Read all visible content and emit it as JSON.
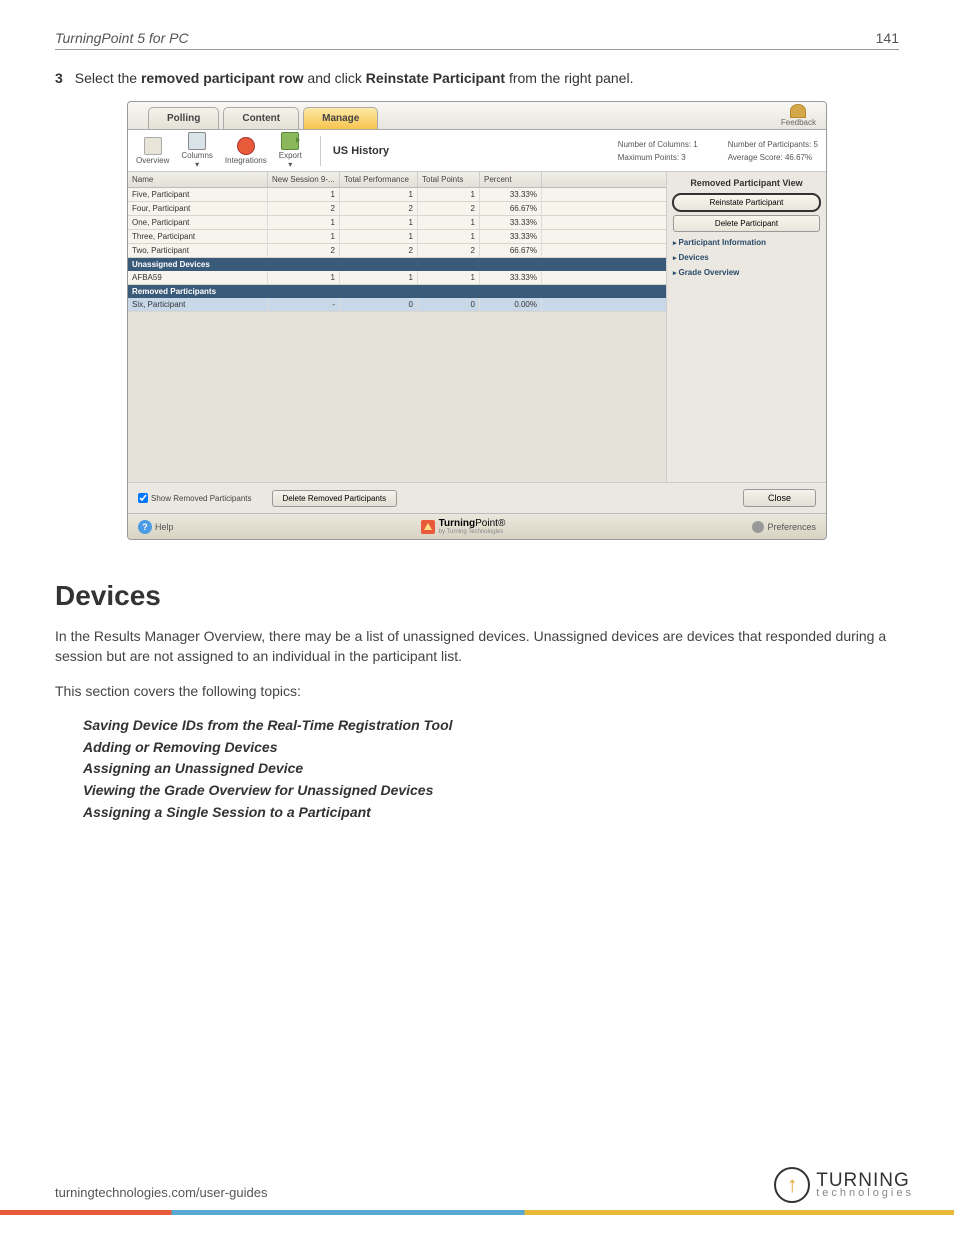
{
  "header": {
    "title": "TurningPoint 5 for PC",
    "page": "141"
  },
  "step": {
    "num": "3",
    "pre": "Select the ",
    "b1": "removed participant row",
    "mid": " and click ",
    "b2": "Reinstate Participant",
    "post": " from the right panel."
  },
  "tabs": {
    "polling": "Polling",
    "content": "Content",
    "manage": "Manage",
    "feedback": "Feedback"
  },
  "tools": {
    "overview": "Overview",
    "columns": "Columns",
    "integrations": "Integrations",
    "export": "Export",
    "title": "US History"
  },
  "stats": {
    "cols": "Number of Columns: 1",
    "max": "Maximum Points: 3",
    "parts": "Number of Participants: 5",
    "avg": "Average Score: 46.67%"
  },
  "grid": {
    "headers": {
      "name": "Name",
      "sess": "New Session 9-...",
      "perf": "Total Performance",
      "pts": "Total Points",
      "pct": "Percent"
    },
    "sections": {
      "unassigned": "Unassigned Devices",
      "removed": "Removed Participants"
    },
    "rows": [
      {
        "name": "Five, Participant",
        "sess": "1",
        "perf": "1",
        "pts": "1",
        "pct": "33.33%"
      },
      {
        "name": "Four, Participant",
        "sess": "2",
        "perf": "2",
        "pts": "2",
        "pct": "66.67%"
      },
      {
        "name": "One, Participant",
        "sess": "1",
        "perf": "1",
        "pts": "1",
        "pct": "33.33%"
      },
      {
        "name": "Three, Participant",
        "sess": "1",
        "perf": "1",
        "pts": "1",
        "pct": "33.33%"
      },
      {
        "name": "Two, Participant",
        "sess": "2",
        "perf": "2",
        "pts": "2",
        "pct": "66.67%"
      }
    ],
    "dev": {
      "name": "AFBA59",
      "sess": "1",
      "perf": "1",
      "pts": "1",
      "pct": "33.33%"
    },
    "rem": {
      "name": "Six, Participant",
      "sess": "-",
      "perf": "0",
      "pts": "0",
      "pct": "0.00%"
    }
  },
  "side": {
    "title": "Removed Participant View",
    "reinstate": "Reinstate Participant",
    "delete": "Delete Participant",
    "info": "Participant Information",
    "devices": "Devices",
    "grade": "Grade Overview"
  },
  "bottom": {
    "show": "Show Removed Participants",
    "del": "Delete Removed Participants",
    "close": "Close"
  },
  "footer": {
    "help": "Help",
    "brand_b": "Turning",
    "brand_r": "Point",
    "brand_sub": "by Turning Technologies",
    "prefs": "Preferences"
  },
  "section": {
    "h1": "Devices",
    "p1": "In the Results Manager Overview, there may be a list of unassigned devices. Unassigned devices are devices that responded during a session but are not assigned to an individual in the participant list.",
    "p2": "This section covers the following topics:",
    "topics": [
      "Saving Device IDs from the Real-Time Registration Tool",
      "Adding or Removing Devices",
      "Assigning an Unassigned Device",
      "Viewing the Grade Overview for Unassigned Devices",
      "Assigning a Single Session to a Participant"
    ]
  },
  "pagefoot": {
    "url": "turningtechnologies.com/user-guides",
    "logo_main": "TURNING",
    "logo_sub": "technologies"
  }
}
